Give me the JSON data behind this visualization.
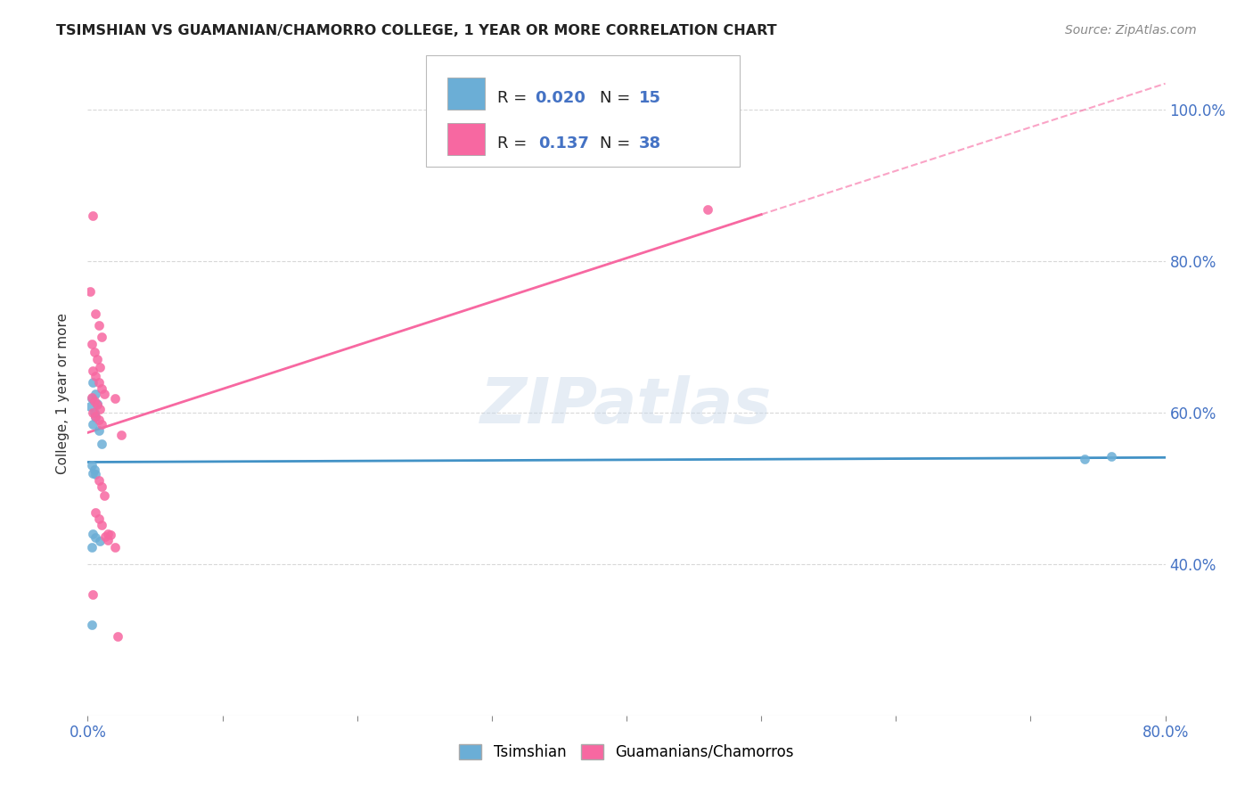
{
  "title": "TSIMSHIAN VS GUAMANIAN/CHAMORRO COLLEGE, 1 YEAR OR MORE CORRELATION CHART",
  "source": "Source: ZipAtlas.com",
  "ylabel_label": "College, 1 year or more",
  "xlim": [
    0.0,
    0.8
  ],
  "ylim": [
    0.2,
    1.05
  ],
  "xtick_positions": [
    0.0,
    0.1,
    0.2,
    0.3,
    0.4,
    0.5,
    0.6,
    0.7,
    0.8
  ],
  "xtick_labels_show": [
    "0.0%",
    "",
    "",
    "",
    "",
    "",
    "",
    "",
    "80.0%"
  ],
  "yticks_right": [
    0.4,
    0.6,
    0.8,
    1.0
  ],
  "watermark": "ZIPatlas",
  "tsimshian_points": [
    [
      0.004,
      0.64
    ],
    [
      0.006,
      0.625
    ],
    [
      0.003,
      0.618
    ],
    [
      0.007,
      0.612
    ],
    [
      0.002,
      0.608
    ],
    [
      0.005,
      0.6
    ],
    [
      0.006,
      0.594
    ],
    [
      0.004,
      0.585
    ],
    [
      0.008,
      0.576
    ],
    [
      0.01,
      0.558
    ],
    [
      0.003,
      0.53
    ],
    [
      0.005,
      0.525
    ],
    [
      0.004,
      0.52
    ],
    [
      0.006,
      0.518
    ],
    [
      0.004,
      0.44
    ],
    [
      0.006,
      0.435
    ],
    [
      0.009,
      0.43
    ],
    [
      0.003,
      0.422
    ],
    [
      0.003,
      0.32
    ],
    [
      0.74,
      0.538
    ],
    [
      0.76,
      0.542
    ]
  ],
  "chamorro_points": [
    [
      0.004,
      0.86
    ],
    [
      0.002,
      0.76
    ],
    [
      0.006,
      0.73
    ],
    [
      0.008,
      0.715
    ],
    [
      0.01,
      0.7
    ],
    [
      0.003,
      0.69
    ],
    [
      0.005,
      0.68
    ],
    [
      0.007,
      0.67
    ],
    [
      0.009,
      0.66
    ],
    [
      0.004,
      0.655
    ],
    [
      0.006,
      0.648
    ],
    [
      0.008,
      0.64
    ],
    [
      0.01,
      0.632
    ],
    [
      0.012,
      0.625
    ],
    [
      0.003,
      0.62
    ],
    [
      0.005,
      0.615
    ],
    [
      0.007,
      0.61
    ],
    [
      0.009,
      0.605
    ],
    [
      0.004,
      0.6
    ],
    [
      0.006,
      0.595
    ],
    [
      0.008,
      0.59
    ],
    [
      0.01,
      0.585
    ],
    [
      0.02,
      0.618
    ],
    [
      0.025,
      0.57
    ],
    [
      0.008,
      0.51
    ],
    [
      0.01,
      0.502
    ],
    [
      0.012,
      0.49
    ],
    [
      0.006,
      0.468
    ],
    [
      0.008,
      0.46
    ],
    [
      0.01,
      0.452
    ],
    [
      0.004,
      0.36
    ],
    [
      0.015,
      0.44
    ],
    [
      0.017,
      0.438
    ],
    [
      0.013,
      0.436
    ],
    [
      0.015,
      0.432
    ],
    [
      0.02,
      0.422
    ],
    [
      0.022,
      0.305
    ],
    [
      0.46,
      0.868
    ]
  ],
  "tsimshian_color": "#6baed6",
  "chamorro_color": "#f768a1",
  "tsimshian_line_color": "#4292c6",
  "chamorro_line_color": "#f768a1",
  "chamorro_line_solid_end": 0.5,
  "background_color": "#ffffff",
  "grid_color": "#d8d8d8"
}
